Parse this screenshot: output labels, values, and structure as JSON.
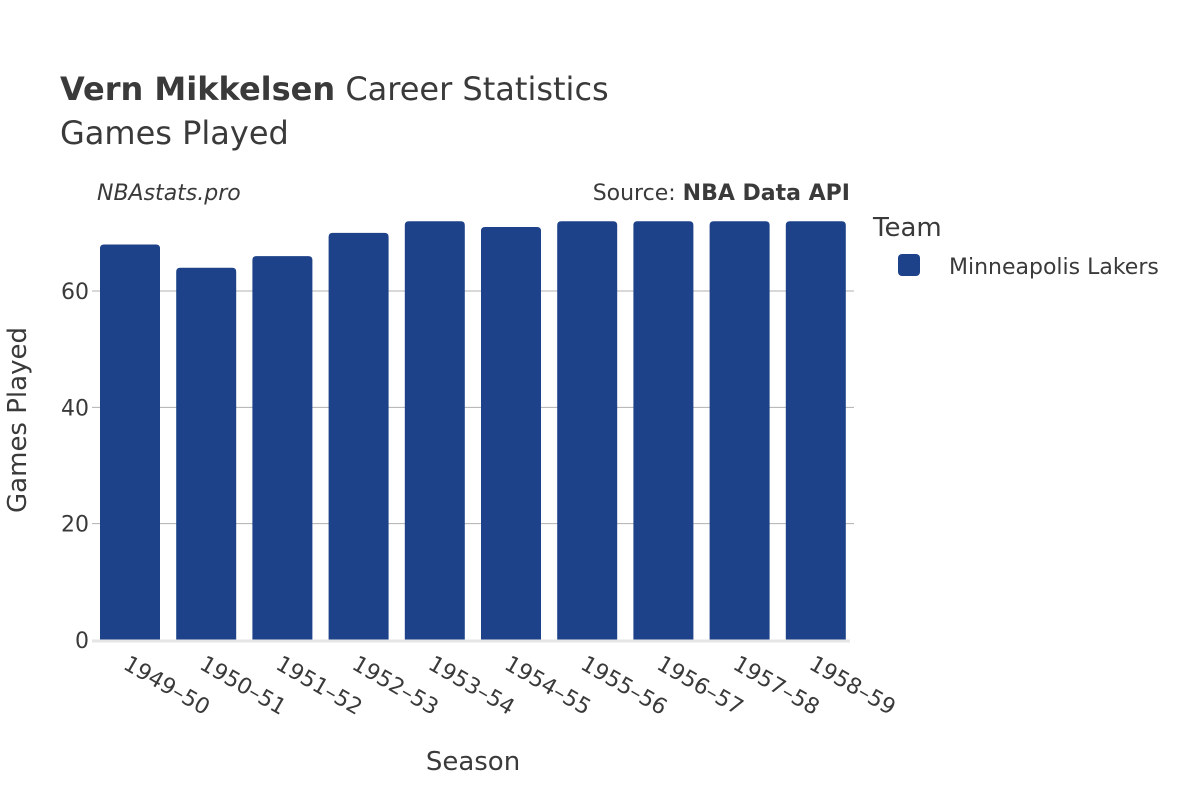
{
  "header": {
    "title_bold": "Vern Mikkelsen",
    "title_rest": " Career Statistics",
    "subtitle": "Games Played",
    "brand": "NBAstats.pro",
    "source_prefix": "Source: ",
    "source_name": "NBA Data API"
  },
  "legend": {
    "title": "Team",
    "items": [
      {
        "label": "Minneapolis Lakers",
        "color": "#1d428a"
      }
    ]
  },
  "chart_data": {
    "type": "bar",
    "title": "Vern Mikkelsen Career Statistics",
    "subtitle": "Games Played",
    "xlabel": "Season",
    "ylabel": "Games Played",
    "categories": [
      "1949–50",
      "1950–51",
      "1951–52",
      "1952–53",
      "1953–54",
      "1954–55",
      "1955–56",
      "1956–57",
      "1957–58",
      "1958–59"
    ],
    "series": [
      {
        "name": "Minneapolis Lakers",
        "color": "#1d428a",
        "values": [
          68,
          64,
          66,
          70,
          72,
          71,
          72,
          72,
          72,
          72
        ]
      }
    ],
    "y_ticks": [
      0,
      20,
      40,
      60
    ],
    "ylim": [
      0,
      75
    ],
    "grid": true,
    "legend_position": "right"
  }
}
